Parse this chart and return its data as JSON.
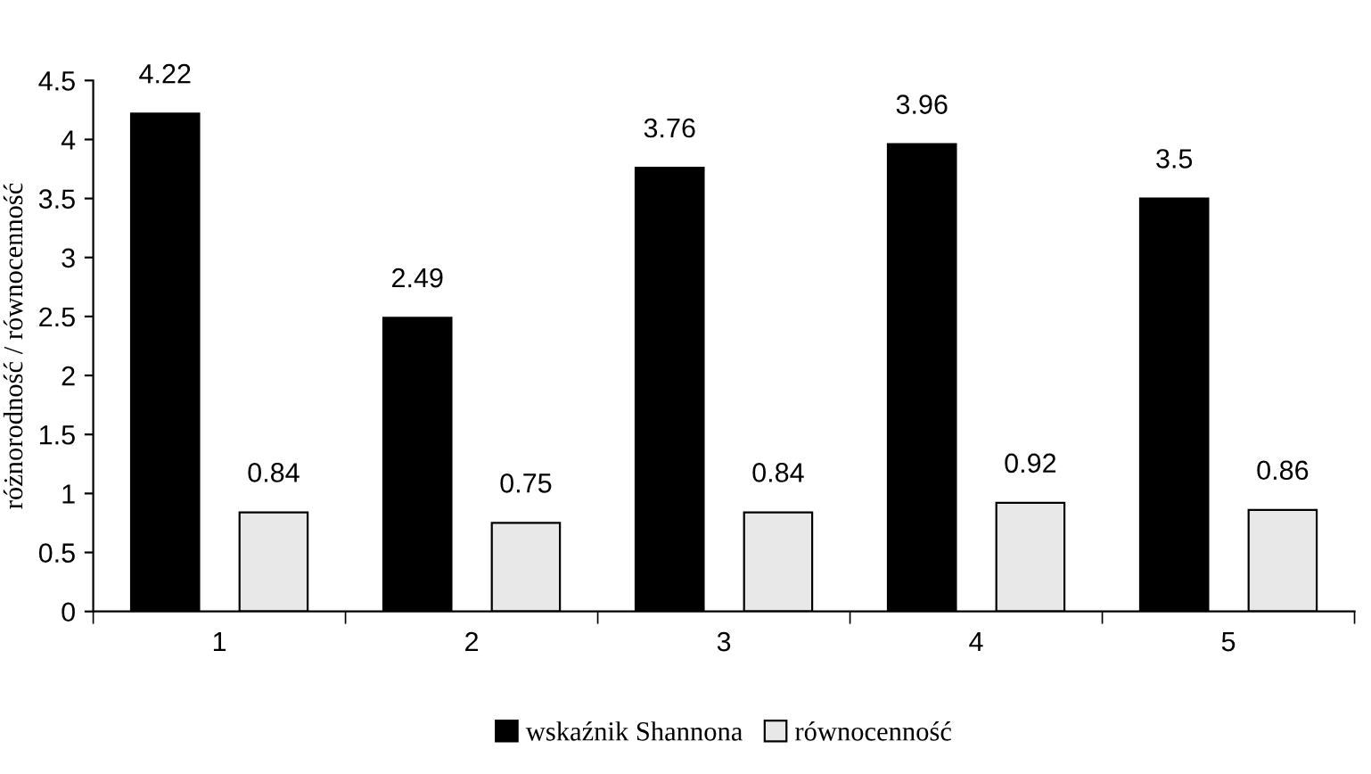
{
  "chart_data": {
    "type": "bar",
    "categories": [
      "1",
      "2",
      "3",
      "4",
      "5"
    ],
    "ylabel": "różnorodność / równocenność",
    "series": [
      {
        "name": "wskaźnik Shannona",
        "color": "#000000",
        "values": [
          4.22,
          2.49,
          3.76,
          3.96,
          3.5
        ]
      },
      {
        "name": "równocenność",
        "color": "#e8e8e8",
        "values": [
          0.84,
          0.75,
          0.84,
          0.92,
          0.86
        ]
      }
    ],
    "ylim": [
      0,
      4.5
    ],
    "yticks": [
      0,
      0.5,
      1,
      1.5,
      2,
      2.5,
      3,
      3.5,
      4,
      4.5
    ],
    "data_labels": true,
    "grid": false,
    "legend": "bottom"
  }
}
